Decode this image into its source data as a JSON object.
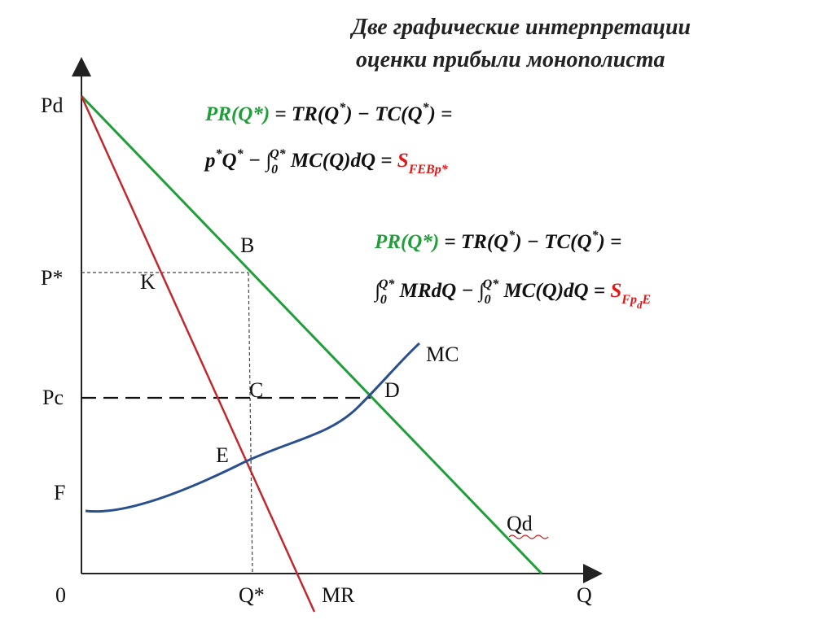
{
  "title": [
    "Две графические интерпретации",
    "оценки прибыли монополиста"
  ],
  "axes": {
    "y_label": "Pd",
    "x_label": "Q",
    "origin": "0"
  },
  "y_marks": {
    "p_star": "P*",
    "pc": "Pc",
    "f": "F"
  },
  "x_marks": {
    "q_star": "Q*",
    "mr": "MR"
  },
  "curves": {
    "qd": "Qd",
    "mc": "MC"
  },
  "points": {
    "b": "B",
    "k": "K",
    "c": "C",
    "d": "D",
    "e": "E"
  },
  "formulas": [
    [
      [
        {
          "t": "PR(Q*)",
          "color": "green"
        },
        {
          "t": " = TR(Q"
        },
        {
          "t": "*",
          "pos": "sup"
        },
        {
          "t": ") − TC(Q"
        },
        {
          "t": "*",
          "pos": "sup"
        },
        {
          "t": ") ="
        }
      ],
      [
        {
          "t": "p"
        },
        {
          "t": "*",
          "pos": "sup"
        },
        {
          "t": "Q"
        },
        {
          "t": "*",
          "pos": "sup"
        },
        {
          "t": " − ∫"
        },
        {
          "t": "0",
          "pos": "sub"
        },
        {
          "t": "Q*",
          "pos": "sup"
        },
        {
          "t": " MC(Q)dQ = "
        },
        {
          "t": "S",
          "color": "red"
        },
        {
          "t": "FEBp*",
          "pos": "sub",
          "color": "red"
        }
      ]
    ],
    [
      [
        {
          "t": "PR(Q*)",
          "color": "green"
        },
        {
          "t": " = TR(Q"
        },
        {
          "t": "*",
          "pos": "sup"
        },
        {
          "t": ") − TC(Q"
        },
        {
          "t": "*",
          "pos": "sup"
        },
        {
          "t": ") ="
        }
      ],
      [
        {
          "t": "∫"
        },
        {
          "t": "0",
          "pos": "sub"
        },
        {
          "t": "Q*",
          "pos": "sup"
        },
        {
          "t": " MRdQ − ∫"
        },
        {
          "t": "0",
          "pos": "sub"
        },
        {
          "t": "Q*",
          "pos": "sup"
        },
        {
          "t": " MC(Q)dQ = "
        },
        {
          "t": "S",
          "color": "red"
        },
        {
          "t": "Fp",
          "pos": "sub",
          "color": "red"
        },
        {
          "t": "d",
          "pos": "subsub",
          "color": "red"
        },
        {
          "t": "E",
          "pos": "sub",
          "color": "red"
        }
      ]
    ]
  ]
}
